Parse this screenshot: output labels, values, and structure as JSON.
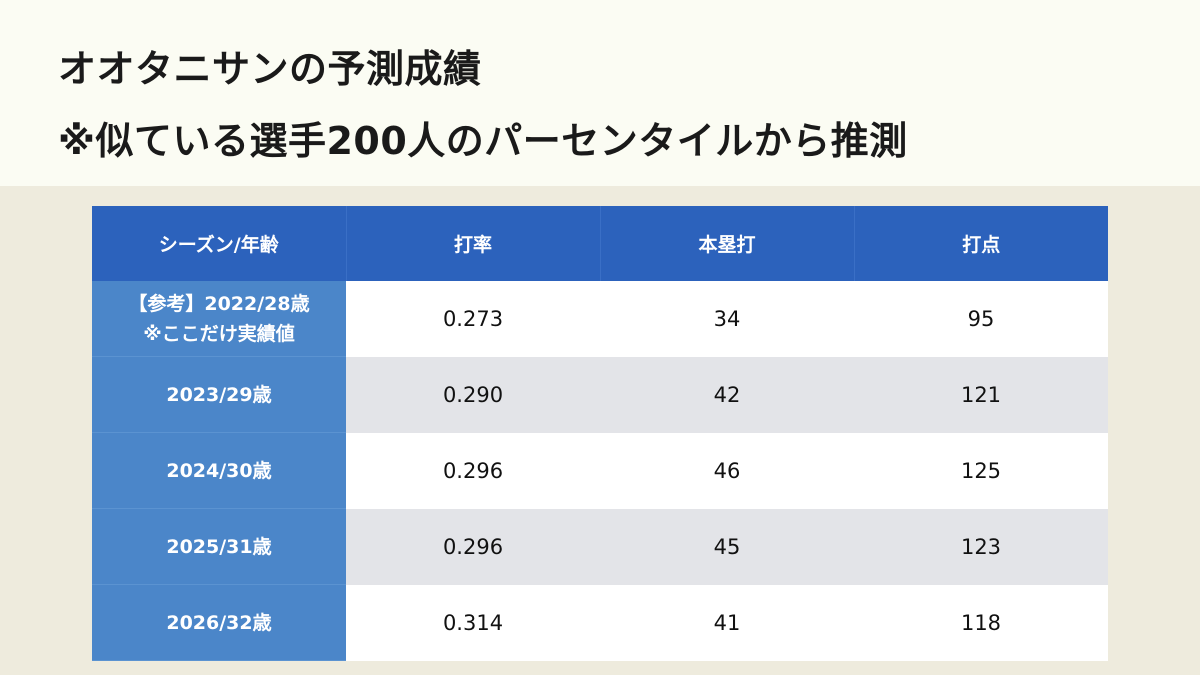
{
  "title": {
    "line1": "オオタニサンの予測成績",
    "line2": "※似ている選手200人のパーセンタイルから推測"
  },
  "table": {
    "headers": [
      "シーズン/年齢",
      "打率",
      "本塁打",
      "打点"
    ],
    "rows": [
      {
        "season": "【参考】2022/28歳",
        "season_note": "※ここだけ実績値",
        "avg": "0.273",
        "hr": "34",
        "rbi": "95"
      },
      {
        "season": "2023/29歳",
        "avg": "0.290",
        "hr": "42",
        "rbi": "121"
      },
      {
        "season": "2024/30歳",
        "avg": "0.296",
        "hr": "46",
        "rbi": "125"
      },
      {
        "season": "2025/31歳",
        "avg": "0.296",
        "hr": "45",
        "rbi": "123"
      },
      {
        "season": "2026/32歳",
        "avg": "0.314",
        "hr": "41",
        "rbi": "118"
      }
    ]
  },
  "colors": {
    "header_bg": "#fbfcf3",
    "page_bg": "#eeebdd",
    "table_header": "#2c62bc",
    "row_header": "#4b86c9",
    "row_even": "#e3e4e8",
    "row_odd": "#ffffff"
  }
}
